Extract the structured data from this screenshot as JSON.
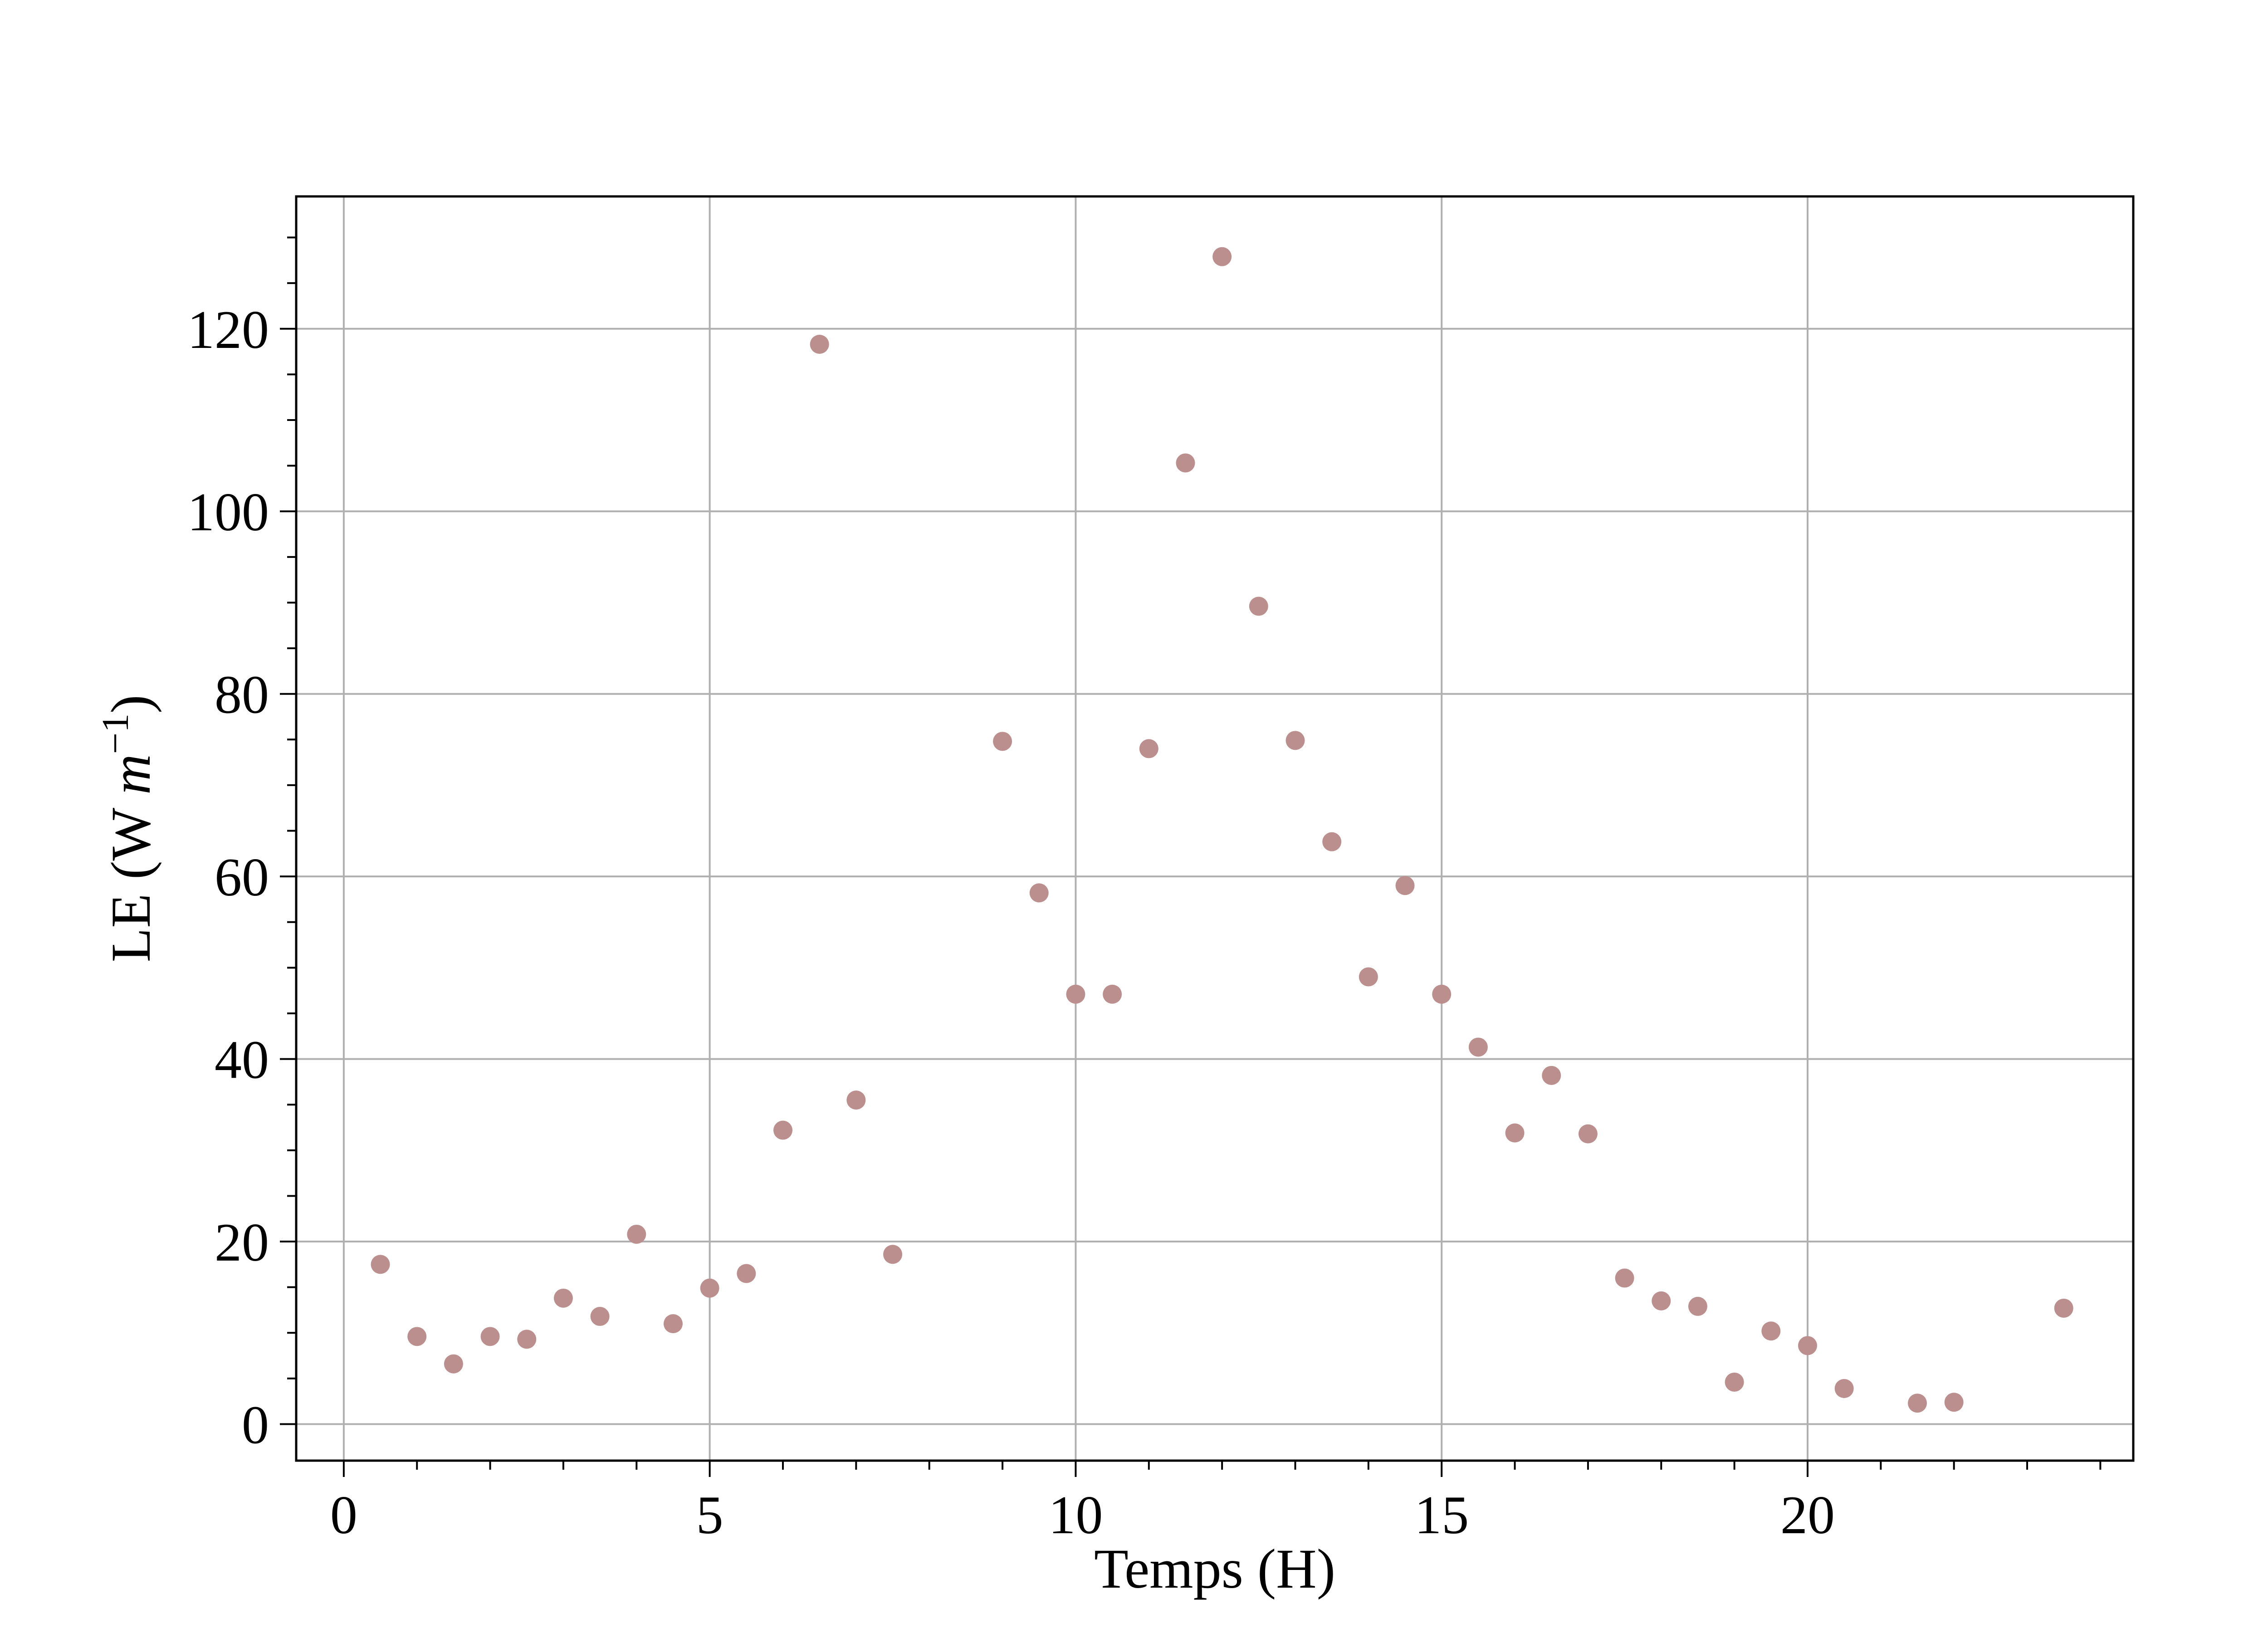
{
  "chart_data": {
    "type": "scatter",
    "title": "",
    "xlabel": "Temps (H)",
    "ylabel": {
      "prefix": "LE (W ",
      "var": "m",
      "sup": "−1",
      "suffix": ")"
    },
    "xlim": [
      -0.65,
      24.45
    ],
    "ylim": [
      -4,
      134.5
    ],
    "xticks": [
      0,
      5,
      10,
      15,
      20
    ],
    "yticks": [
      0,
      20,
      40,
      60,
      80,
      100,
      120
    ],
    "xminor_step": 1,
    "yminor_step": 5,
    "grid": true,
    "marker_color": "#bc8f8f",
    "series": [
      {
        "x": [
          0.5,
          1,
          1.5,
          2,
          2.5,
          3,
          3.5,
          4,
          4.5,
          5,
          5.5,
          6,
          6.5,
          7,
          7.5,
          9,
          9.5,
          10,
          10.5,
          11,
          11.5,
          12,
          12.5,
          13,
          13.5,
          14,
          14.5,
          15,
          15.5,
          16,
          16.5,
          17,
          17.5,
          18,
          18.5,
          19,
          19.5,
          20,
          20.5,
          21.5,
          22,
          23.5
        ],
        "y": [
          17.5,
          9.6,
          6.6,
          9.6,
          9.3,
          13.8,
          11.8,
          20.8,
          11.0,
          14.9,
          16.5,
          32.2,
          118.3,
          35.5,
          18.6,
          74.8,
          58.2,
          47.1,
          47.1,
          74.0,
          105.3,
          127.9,
          89.6,
          74.9,
          63.8,
          49.0,
          59.0,
          47.1,
          41.3,
          31.9,
          38.2,
          31.8,
          16.0,
          13.5,
          12.9,
          4.6,
          10.2,
          8.6,
          3.9,
          2.3,
          2.4,
          12.7
        ]
      }
    ]
  }
}
